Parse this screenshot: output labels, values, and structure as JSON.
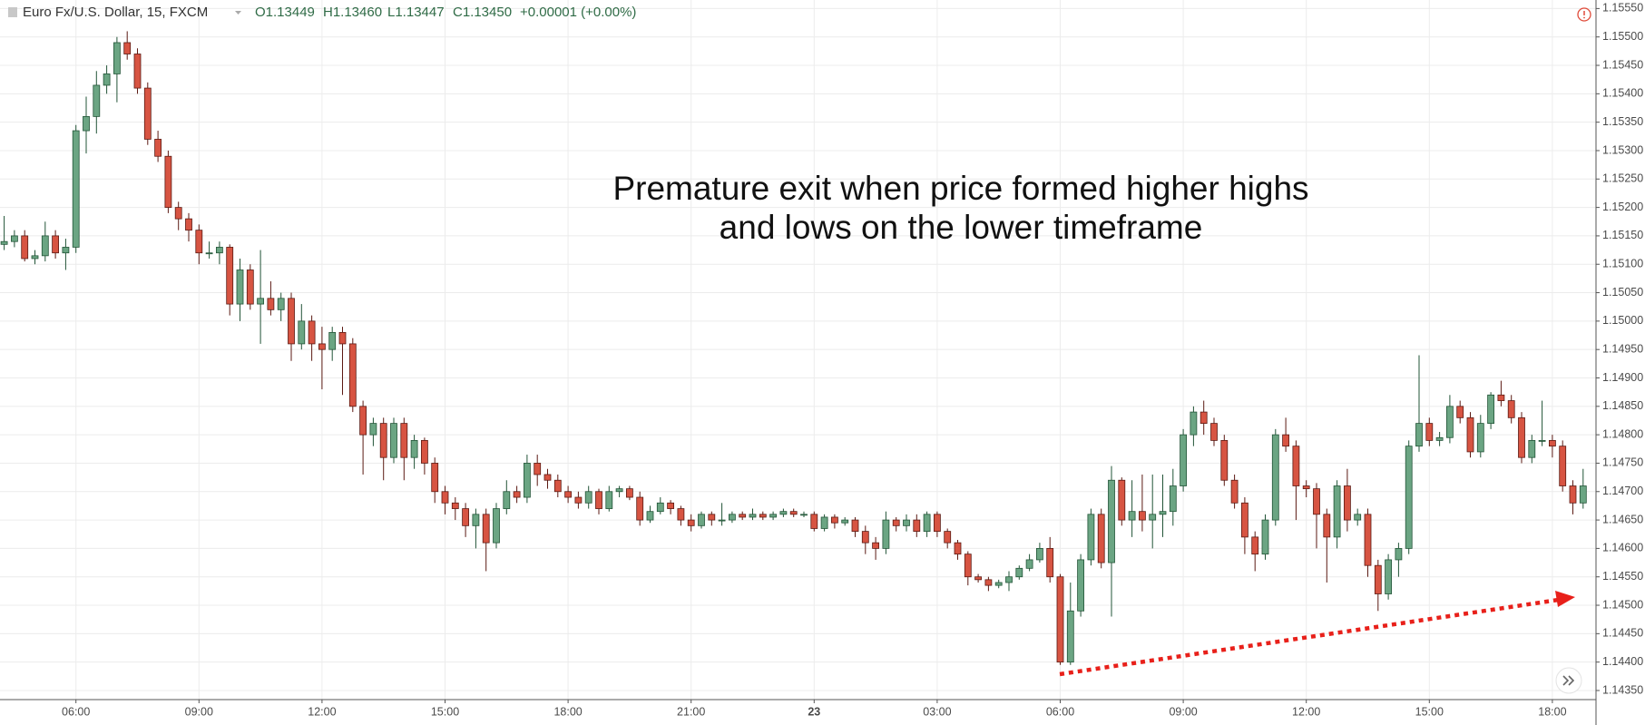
{
  "chart_data": {
    "type": "candlestick",
    "header": {
      "symbol": "Euro Fx/U.S. Dollar, 15, FXCM",
      "open": "O1.13449",
      "high": "H1.13460",
      "low": "L1.13447",
      "close": "C1.13450",
      "change": "+0.00001 (+0.00%)"
    },
    "annotation": [
      "Premature exit when price formed higher highs",
      "and lows on the lower timeframe"
    ],
    "categories": [
      null,
      null,
      null,
      null,
      null,
      null,
      null,
      "06:00",
      null,
      null,
      null,
      null,
      null,
      null,
      null,
      null,
      null,
      null,
      null,
      "09:00",
      null,
      null,
      null,
      null,
      null,
      null,
      null,
      null,
      null,
      null,
      null,
      "12:00",
      null,
      null,
      null,
      null,
      null,
      null,
      null,
      null,
      null,
      null,
      null,
      "15:00",
      null,
      null,
      null,
      null,
      null,
      null,
      null,
      null,
      null,
      null,
      null,
      "18:00",
      null,
      null,
      null,
      null,
      null,
      null,
      null,
      null,
      null,
      null,
      null,
      "21:00",
      null,
      null,
      null,
      null,
      null,
      null,
      null,
      null,
      null,
      null,
      null,
      "23",
      null,
      null,
      null,
      null,
      null,
      null,
      null,
      null,
      null,
      null,
      null,
      "03:00",
      null,
      null,
      null,
      null,
      null,
      null,
      null,
      null,
      null,
      null,
      null,
      "06:00",
      null,
      null,
      null,
      null,
      null,
      null,
      null,
      null,
      null,
      null,
      null,
      "09:00",
      null,
      null,
      null,
      null,
      null,
      null,
      null,
      null,
      null,
      null,
      null,
      "12:00",
      null,
      null,
      null,
      null,
      null,
      null,
      null,
      null,
      null,
      null,
      null,
      "15:00",
      null,
      null,
      null,
      null,
      null,
      null,
      null,
      null,
      null,
      null,
      null,
      "18:00",
      null,
      null,
      null
    ],
    "open": [
      1.15135,
      1.1514,
      1.1515,
      1.1511,
      1.15115,
      1.1515,
      1.1512,
      1.1513,
      1.15335,
      1.1536,
      1.15415,
      1.15435,
      1.1549,
      1.1547,
      1.1541,
      1.1532,
      1.1529,
      1.152,
      1.1518,
      1.1516,
      1.1512,
      1.1512,
      1.1513,
      1.1503,
      1.1509,
      1.1503,
      1.1504,
      1.1502,
      1.1504,
      1.1496,
      1.15,
      1.1496,
      1.1495,
      1.1498,
      1.1496,
      1.1485,
      1.148,
      1.1482,
      1.1476,
      1.1482,
      1.1476,
      1.1479,
      1.1475,
      1.147,
      1.1468,
      1.1467,
      1.1464,
      1.1466,
      1.1461,
      1.1467,
      1.147,
      1.1469,
      1.1475,
      1.1473,
      1.1472,
      1.147,
      1.1469,
      1.1468,
      1.147,
      1.1467,
      1.147,
      1.14705,
      1.1469,
      1.1465,
      1.14665,
      1.1468,
      1.1467,
      1.1465,
      1.1464,
      1.1466,
      1.1465,
      1.1465,
      1.1466,
      1.14655,
      1.1466,
      1.14655,
      1.1466,
      1.14665,
      1.1466,
      1.1466,
      1.14635,
      1.14655,
      1.14645,
      1.1465,
      1.1463,
      1.1461,
      1.146,
      1.1465,
      1.1464,
      1.1465,
      1.1463,
      1.1466,
      1.1463,
      1.1461,
      1.1459,
      1.1455,
      1.14545,
      1.14535,
      1.1454,
      1.1455,
      1.14565,
      1.1458,
      1.146,
      1.1455,
      1.144,
      1.1449,
      1.1458,
      1.1466,
      1.14575,
      1.1472,
      1.1465,
      1.14665,
      1.1465,
      1.1466,
      1.14665,
      1.1471,
      1.148,
      1.1484,
      1.1482,
      1.1479,
      1.1472,
      1.1468,
      1.1462,
      1.1459,
      1.1465,
      1.148,
      1.1478,
      1.1471,
      1.14705,
      1.1466,
      1.1462,
      1.1471,
      1.1465,
      1.1466,
      1.1457,
      1.1452,
      1.1458,
      1.146,
      1.1478,
      1.1482,
      1.1479,
      1.14795,
      1.1485,
      1.1483,
      1.1477,
      1.1482,
      1.1487,
      1.1486,
      1.1483,
      1.1476,
      1.1479,
      1.1479,
      1.1478,
      1.1471,
      1.1468
    ],
    "high": [
      1.15185,
      1.1516,
      1.1516,
      1.15125,
      1.15175,
      1.1516,
      1.15145,
      1.15345,
      1.15395,
      1.1544,
      1.1545,
      1.155,
      1.1551,
      1.1548,
      1.1542,
      1.15335,
      1.153,
      1.1521,
      1.1519,
      1.1517,
      1.1514,
      1.1514,
      1.15135,
      1.1511,
      1.151,
      1.15125,
      1.1507,
      1.1505,
      1.1505,
      1.1503,
      1.1501,
      1.1499,
      1.1499,
      1.1499,
      1.1497,
      1.1486,
      1.1483,
      1.1483,
      1.1483,
      1.1483,
      1.148,
      1.14795,
      1.1476,
      1.1471,
      1.1469,
      1.1468,
      1.1467,
      1.1467,
      1.1468,
      1.1472,
      1.1471,
      1.14765,
      1.14765,
      1.1474,
      1.1473,
      1.1471,
      1.147,
      1.1471,
      1.14705,
      1.1471,
      1.1471,
      1.1471,
      1.147,
      1.14675,
      1.1469,
      1.14685,
      1.14675,
      1.1466,
      1.14665,
      1.14665,
      1.1468,
      1.14665,
      1.14665,
      1.1467,
      1.14665,
      1.14665,
      1.1467,
      1.1467,
      1.14665,
      1.14665,
      1.1466,
      1.1466,
      1.14655,
      1.14655,
      1.1464,
      1.1462,
      1.14665,
      1.14655,
      1.1466,
      1.1466,
      1.14665,
      1.14665,
      1.14635,
      1.14615,
      1.14595,
      1.14555,
      1.1455,
      1.14545,
      1.1456,
      1.1457,
      1.1459,
      1.1461,
      1.1462,
      1.14555,
      1.1454,
      1.1459,
      1.1467,
      1.1467,
      1.14745,
      1.14725,
      1.1472,
      1.1473,
      1.1473,
      1.1473,
      1.1474,
      1.1481,
      1.1485,
      1.1486,
      1.1483,
      1.148,
      1.1473,
      1.1469,
      1.1463,
      1.1466,
      1.1481,
      1.1483,
      1.1479,
      1.1472,
      1.14715,
      1.1467,
      1.1472,
      1.1474,
      1.1467,
      1.1467,
      1.1458,
      1.1459,
      1.1461,
      1.1479,
      1.1494,
      1.1483,
      1.14805,
      1.1487,
      1.1486,
      1.1484,
      1.14835,
      1.14875,
      1.14895,
      1.1487,
      1.1484,
      1.148,
      1.1486,
      1.148,
      1.1479,
      1.1472,
      1.1474
    ],
    "low": [
      1.15125,
      1.1513,
      1.15105,
      1.151,
      1.15105,
      1.1511,
      1.1509,
      1.1512,
      1.15295,
      1.1533,
      1.154,
      1.15385,
      1.1546,
      1.154,
      1.1531,
      1.1528,
      1.1519,
      1.1516,
      1.1514,
      1.151,
      1.1511,
      1.151,
      1.1501,
      1.15,
      1.1502,
      1.1496,
      1.1501,
      1.15,
      1.1493,
      1.1495,
      1.1493,
      1.1488,
      1.1493,
      1.1487,
      1.1484,
      1.1473,
      1.1478,
      1.1472,
      1.1475,
      1.1472,
      1.1474,
      1.1473,
      1.1468,
      1.1466,
      1.1465,
      1.1462,
      1.146,
      1.1456,
      1.146,
      1.1466,
      1.1468,
      1.1468,
      1.1471,
      1.14705,
      1.1469,
      1.1468,
      1.1467,
      1.1467,
      1.1466,
      1.14665,
      1.1469,
      1.14685,
      1.1464,
      1.14645,
      1.1466,
      1.1466,
      1.1464,
      1.1463,
      1.14635,
      1.1464,
      1.1464,
      1.14645,
      1.1465,
      1.1465,
      1.1465,
      1.1465,
      1.14655,
      1.14655,
      1.14655,
      1.1463,
      1.1463,
      1.14635,
      1.1464,
      1.1462,
      1.1459,
      1.1458,
      1.1459,
      1.1463,
      1.1463,
      1.1462,
      1.1462,
      1.1462,
      1.146,
      1.1458,
      1.14535,
      1.1454,
      1.14525,
      1.1453,
      1.14525,
      1.14545,
      1.1456,
      1.14575,
      1.1454,
      1.14395,
      1.14395,
      1.1448,
      1.1457,
      1.14565,
      1.1448,
      1.1464,
      1.1462,
      1.1463,
      1.146,
      1.1462,
      1.1464,
      1.147,
      1.1478,
      1.148,
      1.1478,
      1.1471,
      1.1467,
      1.1459,
      1.1456,
      1.1458,
      1.1464,
      1.1477,
      1.1465,
      1.1469,
      1.146,
      1.1454,
      1.146,
      1.1463,
      1.1464,
      1.1455,
      1.1449,
      1.1451,
      1.1455,
      1.1459,
      1.1477,
      1.1478,
      1.1478,
      1.14785,
      1.1482,
      1.1476,
      1.1476,
      1.1481,
      1.1485,
      1.1482,
      1.1475,
      1.1475,
      1.1478,
      1.1476,
      1.147,
      1.1466,
      1.1467
    ],
    "close": [
      1.1514,
      1.1515,
      1.1511,
      1.15115,
      1.1515,
      1.1512,
      1.1513,
      1.15335,
      1.1536,
      1.15415,
      1.15435,
      1.1549,
      1.1547,
      1.1541,
      1.1532,
      1.1529,
      1.152,
      1.1518,
      1.1516,
      1.1512,
      1.1512,
      1.1513,
      1.1503,
      1.1509,
      1.1503,
      1.1504,
      1.1502,
      1.1504,
      1.1496,
      1.15,
      1.1496,
      1.1495,
      1.1498,
      1.1496,
      1.1485,
      1.148,
      1.1482,
      1.1476,
      1.1482,
      1.1476,
      1.1479,
      1.1475,
      1.147,
      1.1468,
      1.1467,
      1.1464,
      1.1466,
      1.1461,
      1.1467,
      1.147,
      1.1469,
      1.1475,
      1.1473,
      1.1472,
      1.147,
      1.1469,
      1.1468,
      1.147,
      1.1467,
      1.147,
      1.14705,
      1.1469,
      1.1465,
      1.14665,
      1.1468,
      1.1467,
      1.1465,
      1.1464,
      1.1466,
      1.1465,
      1.1465,
      1.1466,
      1.14655,
      1.1466,
      1.14655,
      1.1466,
      1.14665,
      1.1466,
      1.1466,
      1.14635,
      1.14655,
      1.14645,
      1.1465,
      1.1463,
      1.1461,
      1.146,
      1.1465,
      1.1464,
      1.1465,
      1.1463,
      1.1466,
      1.1463,
      1.1461,
      1.1459,
      1.1455,
      1.14545,
      1.14535,
      1.1454,
      1.1455,
      1.14565,
      1.1458,
      1.146,
      1.1455,
      1.144,
      1.1449,
      1.1458,
      1.1466,
      1.14575,
      1.1472,
      1.1465,
      1.14665,
      1.1465,
      1.1466,
      1.14665,
      1.1471,
      1.148,
      1.1484,
      1.1482,
      1.1479,
      1.1472,
      1.1468,
      1.1462,
      1.1459,
      1.1465,
      1.148,
      1.1478,
      1.1471,
      1.14705,
      1.1466,
      1.1462,
      1.1471,
      1.1465,
      1.1466,
      1.1457,
      1.1452,
      1.1458,
      1.146,
      1.1478,
      1.1482,
      1.1479,
      1.14795,
      1.1485,
      1.1483,
      1.1477,
      1.1482,
      1.1487,
      1.1486,
      1.1483,
      1.1476,
      1.1479,
      1.1479,
      1.1478,
      1.1471,
      1.1468,
      1.1471
    ],
    "up_color": "#6ba583",
    "down_color": "#d75442",
    "ylim": [
      1.14334,
      1.15565
    ],
    "yticks": [
      {
        "value": 1.1435,
        "label": "1.14350"
      },
      {
        "value": 1.144,
        "label": "1.14400"
      },
      {
        "value": 1.1445,
        "label": "1.14450"
      },
      {
        "value": 1.145,
        "label": "1.14500"
      },
      {
        "value": 1.1455,
        "label": "1.14550"
      },
      {
        "value": 1.146,
        "label": "1.14600"
      },
      {
        "value": 1.1465,
        "label": "1.14650"
      },
      {
        "value": 1.147,
        "label": "1.14700"
      },
      {
        "value": 1.1475,
        "label": "1.14750"
      },
      {
        "value": 1.148,
        "label": "1.14800"
      },
      {
        "value": 1.1485,
        "label": "1.14850"
      },
      {
        "value": 1.149,
        "label": "1.14900"
      },
      {
        "value": 1.1495,
        "label": "1.14950"
      },
      {
        "value": 1.15,
        "label": "1.15000"
      },
      {
        "value": 1.1505,
        "label": "1.15050"
      },
      {
        "value": 1.151,
        "label": "1.15100"
      },
      {
        "value": 1.1515,
        "label": "1.15150"
      },
      {
        "value": 1.152,
        "label": "1.15200"
      },
      {
        "value": 1.1525,
        "label": "1.15250"
      },
      {
        "value": 1.153,
        "label": "1.15300"
      },
      {
        "value": 1.1535,
        "label": "1.15350"
      },
      {
        "value": 1.154,
        "label": "1.15400"
      },
      {
        "value": 1.1545,
        "label": "1.15450"
      },
      {
        "value": 1.155,
        "label": "1.15500"
      },
      {
        "value": 1.1555,
        "label": "1.15550"
      }
    ],
    "grid": true
  }
}
